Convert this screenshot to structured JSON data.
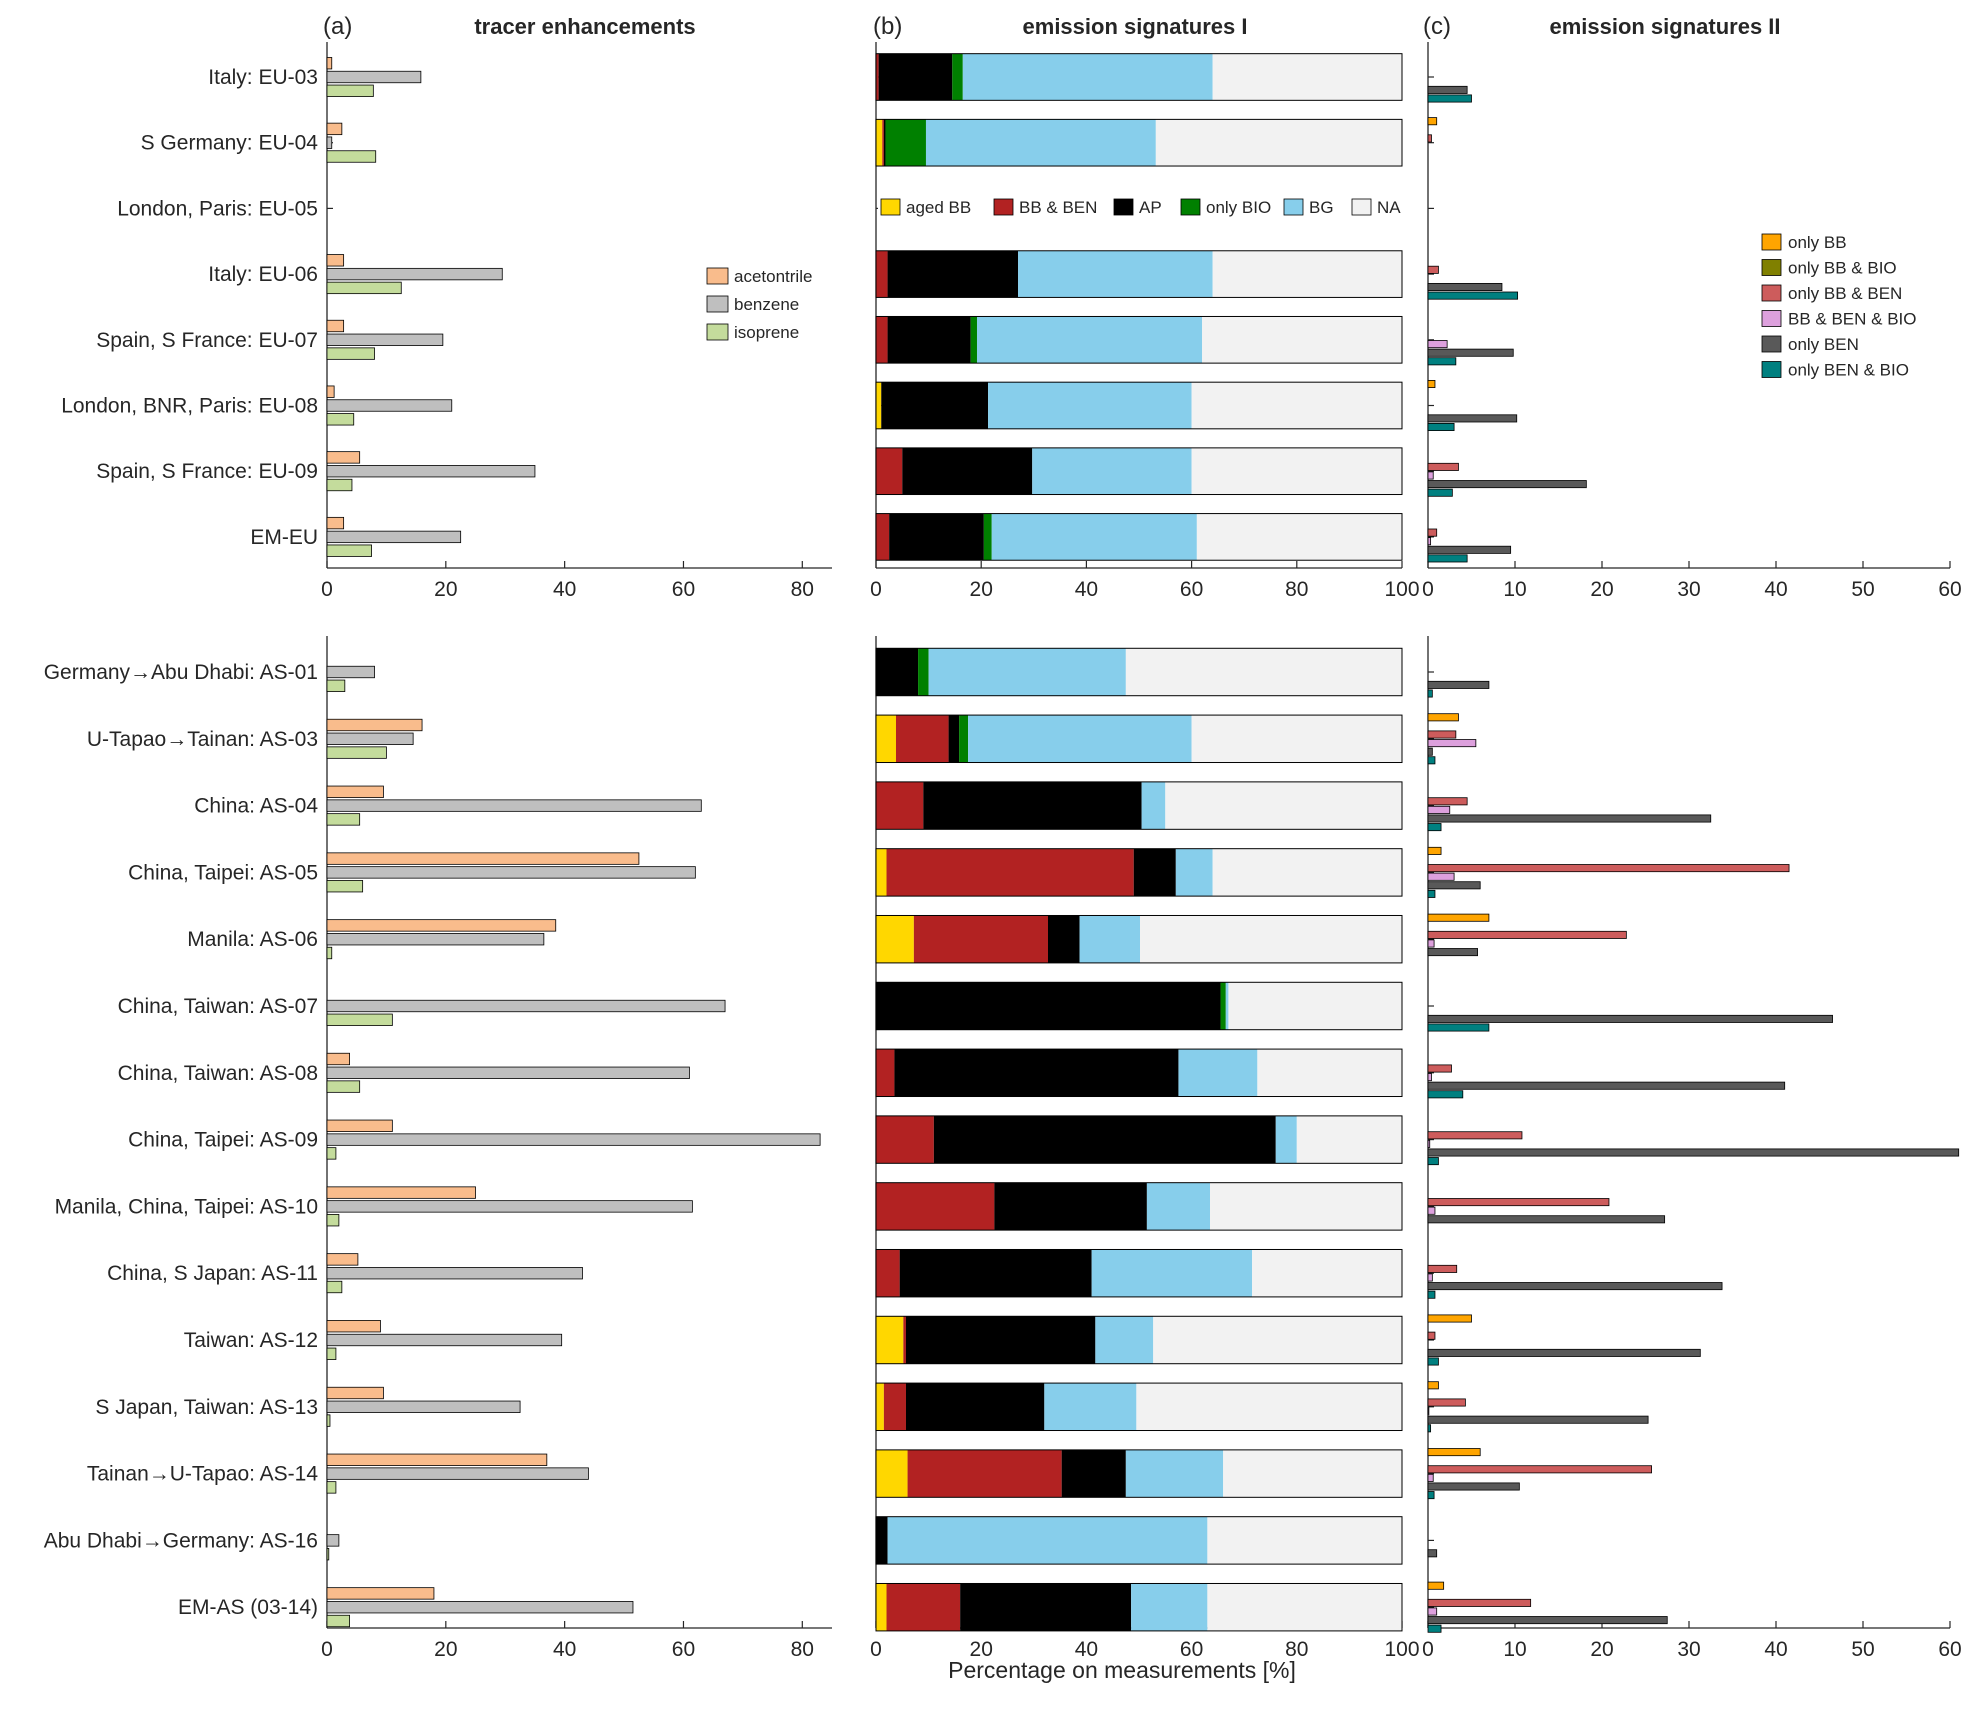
{
  "figure": {
    "xlabel": "Percentage on measurements [%]"
  },
  "panels": [
    {
      "id": "a",
      "label": "(a)",
      "title": "tracer enhancements"
    },
    {
      "id": "b",
      "label": "(b)",
      "title": "emission signatures I"
    },
    {
      "id": "c",
      "label": "(c)",
      "title": "emission signatures II"
    }
  ],
  "colors": {
    "acetontrile": "#f9bc8c",
    "benzene": "#bfbfbf",
    "isoprene": "#c4dc9c",
    "aged BB": "#ffd700",
    "BB & BEN": "#b22222",
    "AP": "#000000",
    "only BIO": "#008000",
    "BG": "#87ceeb",
    "NA": "#f2f2f2",
    "only BB": "#ffa500",
    "only BB & BIO": "#808000",
    "only BB & BEN": "#cd5c5c",
    "BB & BEN & BIO": "#dda0dd",
    "only BEN": "#595959",
    "only BEN & BIO": "#008080"
  },
  "legends": {
    "a": [
      "acetontrile",
      "benzene",
      "isoprene"
    ],
    "b": [
      "aged BB",
      "BB & BEN",
      "AP",
      "only BIO",
      "BG",
      "NA"
    ],
    "c": [
      "only BB",
      "only BB & BIO",
      "only BB & BEN",
      "BB & BEN & BIO",
      "only BEN",
      "only BEN & BIO"
    ]
  },
  "axes": {
    "a": {
      "ticks": [
        "0",
        "20",
        "40",
        "60",
        "80"
      ],
      "xlim": [
        0,
        85
      ]
    },
    "b": {
      "ticks": [
        "0",
        "20",
        "40",
        "60",
        "80",
        "100"
      ],
      "xlim": [
        0,
        100
      ]
    },
    "c": {
      "ticks": [
        "0",
        "10",
        "20",
        "30",
        "40",
        "50",
        "60"
      ],
      "xlim": [
        0,
        60
      ]
    }
  },
  "chart_data": [
    {
      "type": "bar",
      "orientation": "horizontal",
      "panel": "(a) tracer enhancements, top block",
      "categories": [
        "Italy: EU-03",
        "S Germany: EU-04",
        "London, Paris: EU-05",
        "Italy: EU-06",
        "Spain, S France: EU-07",
        "London, BNR, Paris: EU-08",
        "Spain, S France: EU-09",
        "EM-EU"
      ],
      "series": [
        {
          "name": "acetontrile",
          "values": [
            0.8,
            2.5,
            0,
            2.8,
            2.8,
            1.2,
            5.5,
            2.8
          ]
        },
        {
          "name": "benzene",
          "values": [
            15.8,
            0.8,
            0,
            29.5,
            19.5,
            21,
            35,
            22.5
          ]
        },
        {
          "name": "isoprene",
          "values": [
            7.8,
            8.2,
            0,
            12.5,
            8,
            4.5,
            4.2,
            7.5
          ]
        }
      ],
      "xlim": [
        0,
        85
      ]
    },
    {
      "type": "bar",
      "orientation": "horizontal",
      "panel": "(a) tracer enhancements, bottom block",
      "categories": [
        "Germany→Abu Dhabi: AS-01",
        "U-Tapao→Tainan: AS-03",
        "China: AS-04",
        "China, Taipei: AS-05",
        "Manila: AS-06",
        "China, Taiwan: AS-07",
        "China, Taiwan: AS-08",
        "China, Taipei: AS-09",
        "Manila, China, Taipei: AS-10",
        "China, S Japan: AS-11",
        "Taiwan: AS-12",
        "S Japan, Taiwan: AS-13",
        "Tainan→U-Tapao: AS-14",
        "Abu Dhabi→Germany: AS-16",
        "EM-AS (03-14)"
      ],
      "series": [
        {
          "name": "acetontrile",
          "values": [
            0,
            16,
            9.5,
            52.5,
            38.5,
            0,
            3.8,
            11,
            25,
            5.2,
            9,
            9.5,
            37,
            0,
            18
          ]
        },
        {
          "name": "benzene",
          "values": [
            8,
            14.5,
            63,
            62,
            36.5,
            67,
            61,
            83,
            61.5,
            43,
            39.5,
            32.5,
            44,
            2,
            51.5
          ]
        },
        {
          "name": "isoprene",
          "values": [
            3,
            10,
            5.5,
            6,
            0.8,
            11,
            5.5,
            1.5,
            2,
            2.5,
            1.5,
            0.5,
            1.5,
            0.3,
            3.8
          ]
        }
      ],
      "xlim": [
        0,
        85
      ]
    },
    {
      "type": "bar",
      "orientation": "horizontal",
      "stacked": true,
      "panel": "(b) emission signatures I, top block",
      "categories": [
        "Italy: EU-03",
        "S Germany: EU-04",
        "London, Paris: EU-05",
        "Italy: EU-06",
        "Spain, S France: EU-07",
        "London, BNR, Paris: EU-08",
        "Spain, S France: EU-09",
        "EM-EU"
      ],
      "series": [
        {
          "name": "aged BB",
          "values": [
            0,
            1.2,
            0,
            0,
            0,
            1,
            0,
            0
          ]
        },
        {
          "name": "BB & BEN",
          "values": [
            0.5,
            0.3,
            0,
            2.2,
            2.2,
            0,
            5,
            2.5
          ]
        },
        {
          "name": "AP",
          "values": [
            14,
            0.3,
            0,
            24.8,
            15.8,
            20.3,
            24.7,
            18
          ]
        },
        {
          "name": "only BIO",
          "values": [
            2,
            7.7,
            0,
            0,
            1.2,
            0,
            0,
            1.5
          ]
        },
        {
          "name": "BG",
          "values": [
            47.5,
            43.7,
            0,
            37,
            42.8,
            38.7,
            30.3,
            39
          ]
        },
        {
          "name": "NA",
          "values": [
            36,
            46.8,
            0,
            36,
            38,
            40,
            40,
            39
          ]
        }
      ],
      "xlim": [
        0,
        100
      ]
    },
    {
      "type": "bar",
      "orientation": "horizontal",
      "stacked": true,
      "panel": "(b) emission signatures I, bottom block",
      "categories": [
        "Germany→Abu Dhabi: AS-01",
        "U-Tapao→Tainan: AS-03",
        "China: AS-04",
        "China, Taipei: AS-05",
        "Manila: AS-06",
        "China, Taiwan: AS-07",
        "China, Taiwan: AS-08",
        "China, Taipei: AS-09",
        "Manila, China, Taipei: AS-10",
        "China, S Japan: AS-11",
        "Taiwan: AS-12",
        "S Japan, Taiwan: AS-13",
        "Tainan→U-Tapao: AS-14",
        "Abu Dhabi→Germany: AS-16",
        "EM-AS (03-14)"
      ],
      "series": [
        {
          "name": "aged BB",
          "values": [
            0,
            3.8,
            0,
            2,
            7.2,
            0,
            0,
            0,
            0,
            0,
            5.2,
            1.5,
            6,
            0,
            2
          ]
        },
        {
          "name": "BB & BEN",
          "values": [
            0,
            10,
            9,
            47,
            25.5,
            0,
            3.5,
            11,
            22.5,
            4.5,
            0.5,
            4.2,
            29.3,
            0,
            14
          ]
        },
        {
          "name": "AP",
          "values": [
            8,
            2,
            41.5,
            8,
            6,
            65.5,
            54,
            65,
            29,
            36.5,
            36,
            26.3,
            12.2,
            2.2,
            32.5
          ]
        },
        {
          "name": "only BIO",
          "values": [
            2,
            1.7,
            0,
            0,
            0,
            1,
            0,
            0,
            0,
            0,
            0,
            0,
            0,
            0,
            0
          ]
        },
        {
          "name": "BG",
          "values": [
            37.5,
            42.5,
            4.5,
            7,
            11.5,
            0.5,
            15,
            4,
            12,
            30.5,
            11,
            17.5,
            18.5,
            60.8,
            14.5
          ]
        },
        {
          "name": "NA",
          "values": [
            52.5,
            40,
            45,
            36,
            49.8,
            33,
            27.5,
            20,
            36.5,
            28.5,
            47.3,
            50.5,
            34,
            37,
            37
          ]
        }
      ],
      "xlim": [
        0,
        100
      ]
    },
    {
      "type": "bar",
      "orientation": "horizontal",
      "panel": "(c) emission signatures II, top block",
      "categories": [
        "Italy: EU-03",
        "S Germany: EU-04",
        "London, Paris: EU-05",
        "Italy: EU-06",
        "Spain, S France: EU-07",
        "London, BNR, Paris: EU-08",
        "Spain, S France: EU-09",
        "EM-EU"
      ],
      "series": [
        {
          "name": "only BB",
          "values": [
            0,
            1,
            0,
            0,
            0,
            0.8,
            0,
            0
          ]
        },
        {
          "name": "only BB & BIO",
          "values": [
            0,
            0,
            0,
            0,
            0,
            0,
            0,
            0
          ]
        },
        {
          "name": "only BB & BEN",
          "values": [
            0,
            0.4,
            0,
            1.2,
            0,
            0,
            3.5,
            1
          ]
        },
        {
          "name": "BB & BEN & BIO",
          "values": [
            0,
            0,
            0,
            0,
            2.2,
            0,
            0.6,
            0.3
          ]
        },
        {
          "name": "only BEN",
          "values": [
            4.5,
            0,
            0,
            8.5,
            9.8,
            10.2,
            18.2,
            9.5
          ]
        },
        {
          "name": "only BEN & BIO",
          "values": [
            5,
            0,
            0,
            10.3,
            3.2,
            3,
            2.8,
            4.5
          ]
        }
      ],
      "xlim": [
        0,
        60
      ]
    },
    {
      "type": "bar",
      "orientation": "horizontal",
      "panel": "(c) emission signatures II, bottom block",
      "categories": [
        "Germany→Abu Dhabi: AS-01",
        "U-Tapao→Tainan: AS-03",
        "China: AS-04",
        "China, Taipei: AS-05",
        "Manila: AS-06",
        "China, Taiwan: AS-07",
        "China, Taiwan: AS-08",
        "China, Taipei: AS-09",
        "Manila, China, Taipei: AS-10",
        "China, S Japan: AS-11",
        "Taiwan: AS-12",
        "S Japan, Taiwan: AS-13",
        "Tainan→U-Tapao: AS-14",
        "Abu Dhabi→Germany: AS-16",
        "EM-AS (03-14)"
      ],
      "series": [
        {
          "name": "only BB",
          "values": [
            0,
            3.5,
            0,
            1.5,
            7,
            0,
            0,
            0,
            0,
            0,
            5,
            1.2,
            6,
            0,
            1.8
          ]
        },
        {
          "name": "only BB & BIO",
          "values": [
            0,
            0,
            0,
            0,
            0,
            0,
            0,
            0,
            0,
            0,
            0,
            0,
            0,
            0,
            0
          ]
        },
        {
          "name": "only BB & BEN",
          "values": [
            0,
            3.2,
            4.5,
            41.5,
            22.8,
            0,
            2.7,
            10.8,
            20.8,
            3.3,
            0.8,
            4.3,
            25.7,
            0,
            11.8
          ]
        },
        {
          "name": "BB & BEN & BIO",
          "values": [
            0,
            5.5,
            2.5,
            3,
            0.7,
            0,
            0.4,
            0.2,
            0.8,
            0.5,
            0,
            0.1,
            0.6,
            0,
            1
          ]
        },
        {
          "name": "only BEN",
          "values": [
            7,
            0.5,
            32.5,
            6,
            5.7,
            46.5,
            41,
            61,
            27.2,
            33.8,
            31.3,
            25.3,
            10.5,
            1,
            27.5
          ]
        },
        {
          "name": "only BEN & BIO",
          "values": [
            0.5,
            0.8,
            1.5,
            0.8,
            0,
            7,
            4,
            1.2,
            0,
            0.8,
            1.2,
            0.3,
            0.7,
            0,
            1.5
          ]
        }
      ],
      "xlim": [
        0,
        60
      ]
    }
  ]
}
